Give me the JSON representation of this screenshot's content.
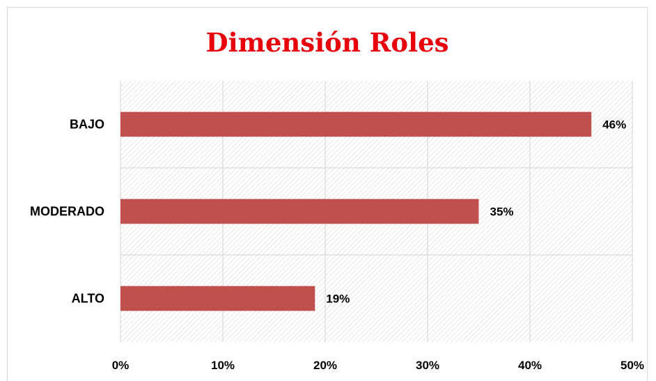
{
  "chart_data": {
    "type": "bar",
    "orientation": "horizontal",
    "title": "Dimensión Roles",
    "categories": [
      "BAJO",
      "MODERADO",
      "ALTO"
    ],
    "values": [
      46,
      35,
      19
    ],
    "data_labels": [
      "46%",
      "35%",
      "19%"
    ],
    "xlim": [
      0,
      50
    ],
    "x_ticks": [
      "0%",
      "10%",
      "20%",
      "30%",
      "40%",
      "50%"
    ],
    "xlabel": "",
    "ylabel": "",
    "grid": true,
    "legend": "none",
    "colors": {
      "bar": "#c0504d",
      "title": "#e8000b",
      "grid": "#d9d9d9",
      "hatch": "#dadada"
    }
  }
}
